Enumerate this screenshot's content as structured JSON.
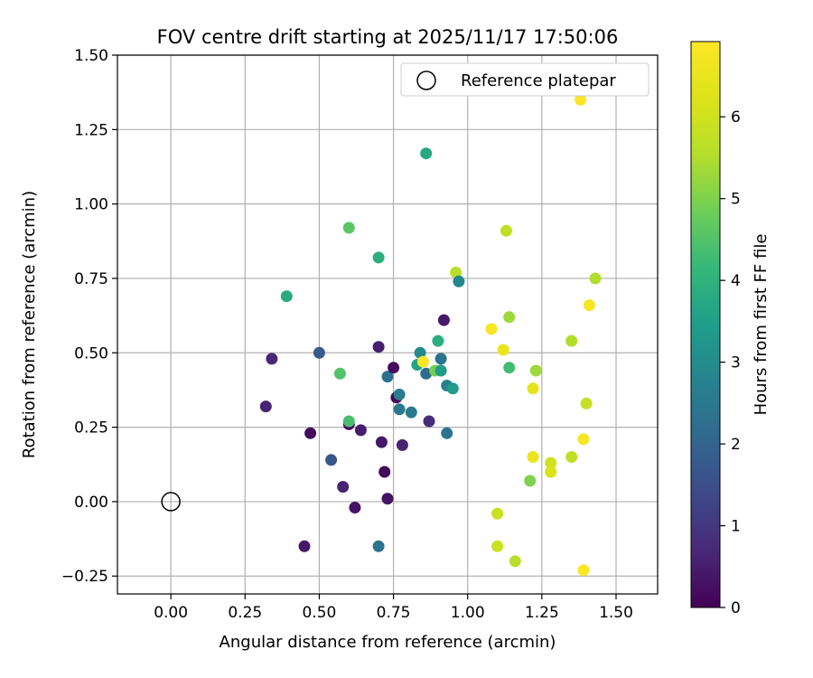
{
  "chart_data": {
    "type": "scatter",
    "title": "FOV centre drift starting at 2025/11/17 17:50:06",
    "xlabel": "Angular distance from reference (arcmin)",
    "ylabel": "Rotation from reference (arcmin)",
    "xlim": [
      -0.18,
      1.64
    ],
    "ylim": [
      -0.31,
      1.5
    ],
    "xticks": [
      0.0,
      0.25,
      0.5,
      0.75,
      1.0,
      1.25,
      1.5
    ],
    "xtick_labels": [
      "0.00",
      "0.25",
      "0.50",
      "0.75",
      "1.00",
      "1.25",
      "1.50"
    ],
    "yticks": [
      -0.25,
      0.0,
      0.25,
      0.5,
      0.75,
      1.0,
      1.25,
      1.5
    ],
    "ytick_labels": [
      "−0.25",
      "0.00",
      "0.25",
      "0.50",
      "0.75",
      "1.00",
      "1.25",
      "1.50"
    ],
    "grid": true,
    "legend": {
      "location": "top-right",
      "label": "Reference platepar"
    },
    "reference_point": {
      "x": 0.0,
      "y": 0.0
    },
    "colorbar": {
      "label": "Hours from first FF file",
      "range": [
        0,
        6.92
      ],
      "ticks": [
        0,
        1,
        2,
        3,
        4,
        5,
        6
      ],
      "tick_labels": [
        "0",
        "1",
        "2",
        "3",
        "4",
        "5",
        "6"
      ],
      "colormap": "viridis"
    },
    "points": [
      {
        "x": 0.32,
        "y": 0.32,
        "hours": 0.6
      },
      {
        "x": 0.34,
        "y": 0.48,
        "hours": 0.7
      },
      {
        "x": 0.45,
        "y": -0.15,
        "hours": 0.4
      },
      {
        "x": 0.47,
        "y": 0.23,
        "hours": 0.2
      },
      {
        "x": 0.5,
        "y": 0.5,
        "hours": 1.8
      },
      {
        "x": 0.54,
        "y": 0.14,
        "hours": 1.7
      },
      {
        "x": 0.58,
        "y": 0.05,
        "hours": 0.6
      },
      {
        "x": 0.6,
        "y": 0.26,
        "hours": 0.2
      },
      {
        "x": 0.62,
        "y": -0.02,
        "hours": 0.3
      },
      {
        "x": 0.64,
        "y": 0.24,
        "hours": 0.5
      },
      {
        "x": 0.7,
        "y": 0.52,
        "hours": 0.5
      },
      {
        "x": 0.71,
        "y": 0.2,
        "hours": 0.4
      },
      {
        "x": 0.72,
        "y": 0.1,
        "hours": 0.1
      },
      {
        "x": 0.73,
        "y": 0.01,
        "hours": 0.3
      },
      {
        "x": 0.73,
        "y": 0.42,
        "hours": 2.3
      },
      {
        "x": 0.75,
        "y": 0.45,
        "hours": 0.2
      },
      {
        "x": 0.76,
        "y": 0.35,
        "hours": 0.1
      },
      {
        "x": 0.77,
        "y": 0.36,
        "hours": 2.7
      },
      {
        "x": 0.77,
        "y": 0.31,
        "hours": 2.5
      },
      {
        "x": 0.78,
        "y": 0.19,
        "hours": 0.6
      },
      {
        "x": 0.81,
        "y": 0.3,
        "hours": 2.6
      },
      {
        "x": 0.83,
        "y": 0.46,
        "hours": 3.6
      },
      {
        "x": 0.84,
        "y": 0.5,
        "hours": 3.0
      },
      {
        "x": 0.86,
        "y": 0.43,
        "hours": 2.2
      },
      {
        "x": 0.86,
        "y": 1.17,
        "hours": 3.7
      },
      {
        "x": 0.87,
        "y": 0.27,
        "hours": 0.8
      },
      {
        "x": 0.89,
        "y": 0.44,
        "hours": 4.9
      },
      {
        "x": 0.9,
        "y": 0.54,
        "hours": 3.9
      },
      {
        "x": 0.91,
        "y": 0.48,
        "hours": 2.4
      },
      {
        "x": 0.91,
        "y": 0.44,
        "hours": 3.4
      },
      {
        "x": 0.92,
        "y": 0.61,
        "hours": 0.4
      },
      {
        "x": 0.93,
        "y": 0.39,
        "hours": 2.8
      },
      {
        "x": 0.93,
        "y": 0.23,
        "hours": 2.4
      },
      {
        "x": 0.95,
        "y": 0.38,
        "hours": 3.4
      },
      {
        "x": 0.96,
        "y": 0.77,
        "hours": 5.6
      },
      {
        "x": 0.97,
        "y": 0.74,
        "hours": 2.9
      },
      {
        "x": 0.85,
        "y": 0.47,
        "hours": 6.9
      },
      {
        "x": 0.7,
        "y": 0.82,
        "hours": 3.9
      },
      {
        "x": 0.7,
        "y": -0.15,
        "hours": 2.4
      },
      {
        "x": 0.6,
        "y": 0.92,
        "hours": 4.6
      },
      {
        "x": 0.6,
        "y": 0.27,
        "hours": 4.4
      },
      {
        "x": 0.57,
        "y": 0.43,
        "hours": 4.5
      },
      {
        "x": 0.39,
        "y": 0.69,
        "hours": 3.8
      },
      {
        "x": 1.08,
        "y": 0.58,
        "hours": 6.8
      },
      {
        "x": 1.1,
        "y": -0.04,
        "hours": 5.9
      },
      {
        "x": 1.1,
        "y": -0.15,
        "hours": 5.9
      },
      {
        "x": 1.12,
        "y": 0.51,
        "hours": 6.5
      },
      {
        "x": 1.13,
        "y": 0.91,
        "hours": 5.7
      },
      {
        "x": 1.14,
        "y": 0.62,
        "hours": 5.3
      },
      {
        "x": 1.14,
        "y": 0.45,
        "hours": 4.3
      },
      {
        "x": 1.16,
        "y": -0.2,
        "hours": 5.6
      },
      {
        "x": 1.21,
        "y": 0.07,
        "hours": 5.0
      },
      {
        "x": 1.22,
        "y": 0.15,
        "hours": 6.5
      },
      {
        "x": 1.22,
        "y": 0.38,
        "hours": 6.4
      },
      {
        "x": 1.23,
        "y": 0.44,
        "hours": 5.3
      },
      {
        "x": 1.28,
        "y": 0.13,
        "hours": 6.0
      },
      {
        "x": 1.28,
        "y": 0.1,
        "hours": 6.2
      },
      {
        "x": 1.35,
        "y": 0.54,
        "hours": 5.5
      },
      {
        "x": 1.35,
        "y": 0.15,
        "hours": 5.7
      },
      {
        "x": 1.38,
        "y": 1.35,
        "hours": 6.9
      },
      {
        "x": 1.39,
        "y": -0.23,
        "hours": 6.9
      },
      {
        "x": 1.39,
        "y": 0.21,
        "hours": 6.8
      },
      {
        "x": 1.4,
        "y": 0.33,
        "hours": 5.8
      },
      {
        "x": 1.41,
        "y": 0.66,
        "hours": 6.8
      },
      {
        "x": 1.43,
        "y": 0.75,
        "hours": 5.5
      }
    ]
  }
}
